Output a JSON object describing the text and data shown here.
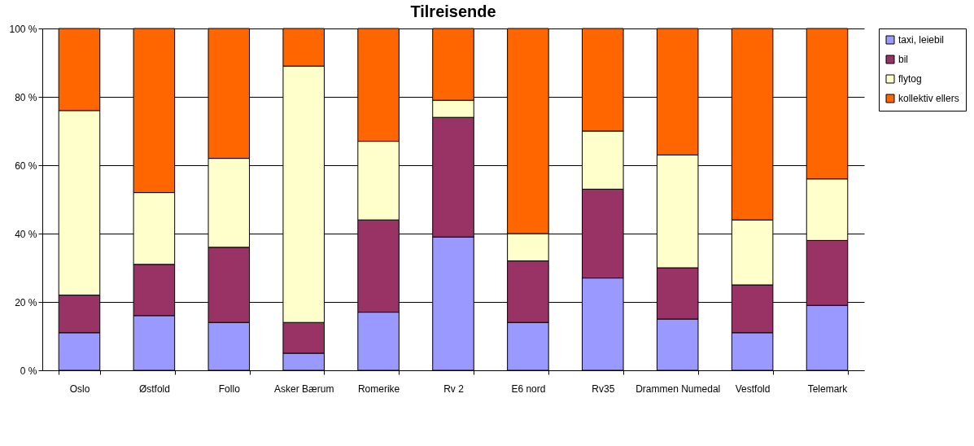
{
  "chart_data": {
    "type": "bar",
    "title": "Tilreisende",
    "stacked": true,
    "categories": [
      "Oslo",
      "Østfold",
      "Follo",
      "Asker Bærum",
      "Romerike",
      "Rv 2",
      "E6 nord",
      "Rv35",
      "Drammen Numedal",
      "Vestfold",
      "Telemark"
    ],
    "series": [
      {
        "name": "taxi, leiebil",
        "color": "#9999ff",
        "values": [
          11,
          16,
          14,
          5,
          17,
          39,
          14,
          27,
          15,
          11,
          19
        ]
      },
      {
        "name": "bil",
        "color": "#993366",
        "values": [
          11,
          15,
          22,
          9,
          27,
          35,
          18,
          26,
          15,
          14,
          19
        ]
      },
      {
        "name": "flytog",
        "color": "#ffffcc",
        "values": [
          54,
          21,
          26,
          75,
          23,
          5,
          8,
          17,
          33,
          19,
          18
        ]
      },
      {
        "name": "kollektiv ellers",
        "color": "#ff6600",
        "values": [
          24,
          48,
          38,
          11,
          33,
          21,
          60,
          30,
          37,
          56,
          44
        ]
      }
    ],
    "ylim": [
      0,
      100
    ],
    "yticks": [
      {
        "value": 0,
        "label": "0 %"
      },
      {
        "value": 20,
        "label": "20 %"
      },
      {
        "value": 40,
        "label": "40 %"
      },
      {
        "value": 60,
        "label": "60 %"
      },
      {
        "value": 80,
        "label": "80 %"
      },
      {
        "value": 100,
        "label": "100 %"
      }
    ],
    "grid": "y",
    "legend": "right"
  }
}
